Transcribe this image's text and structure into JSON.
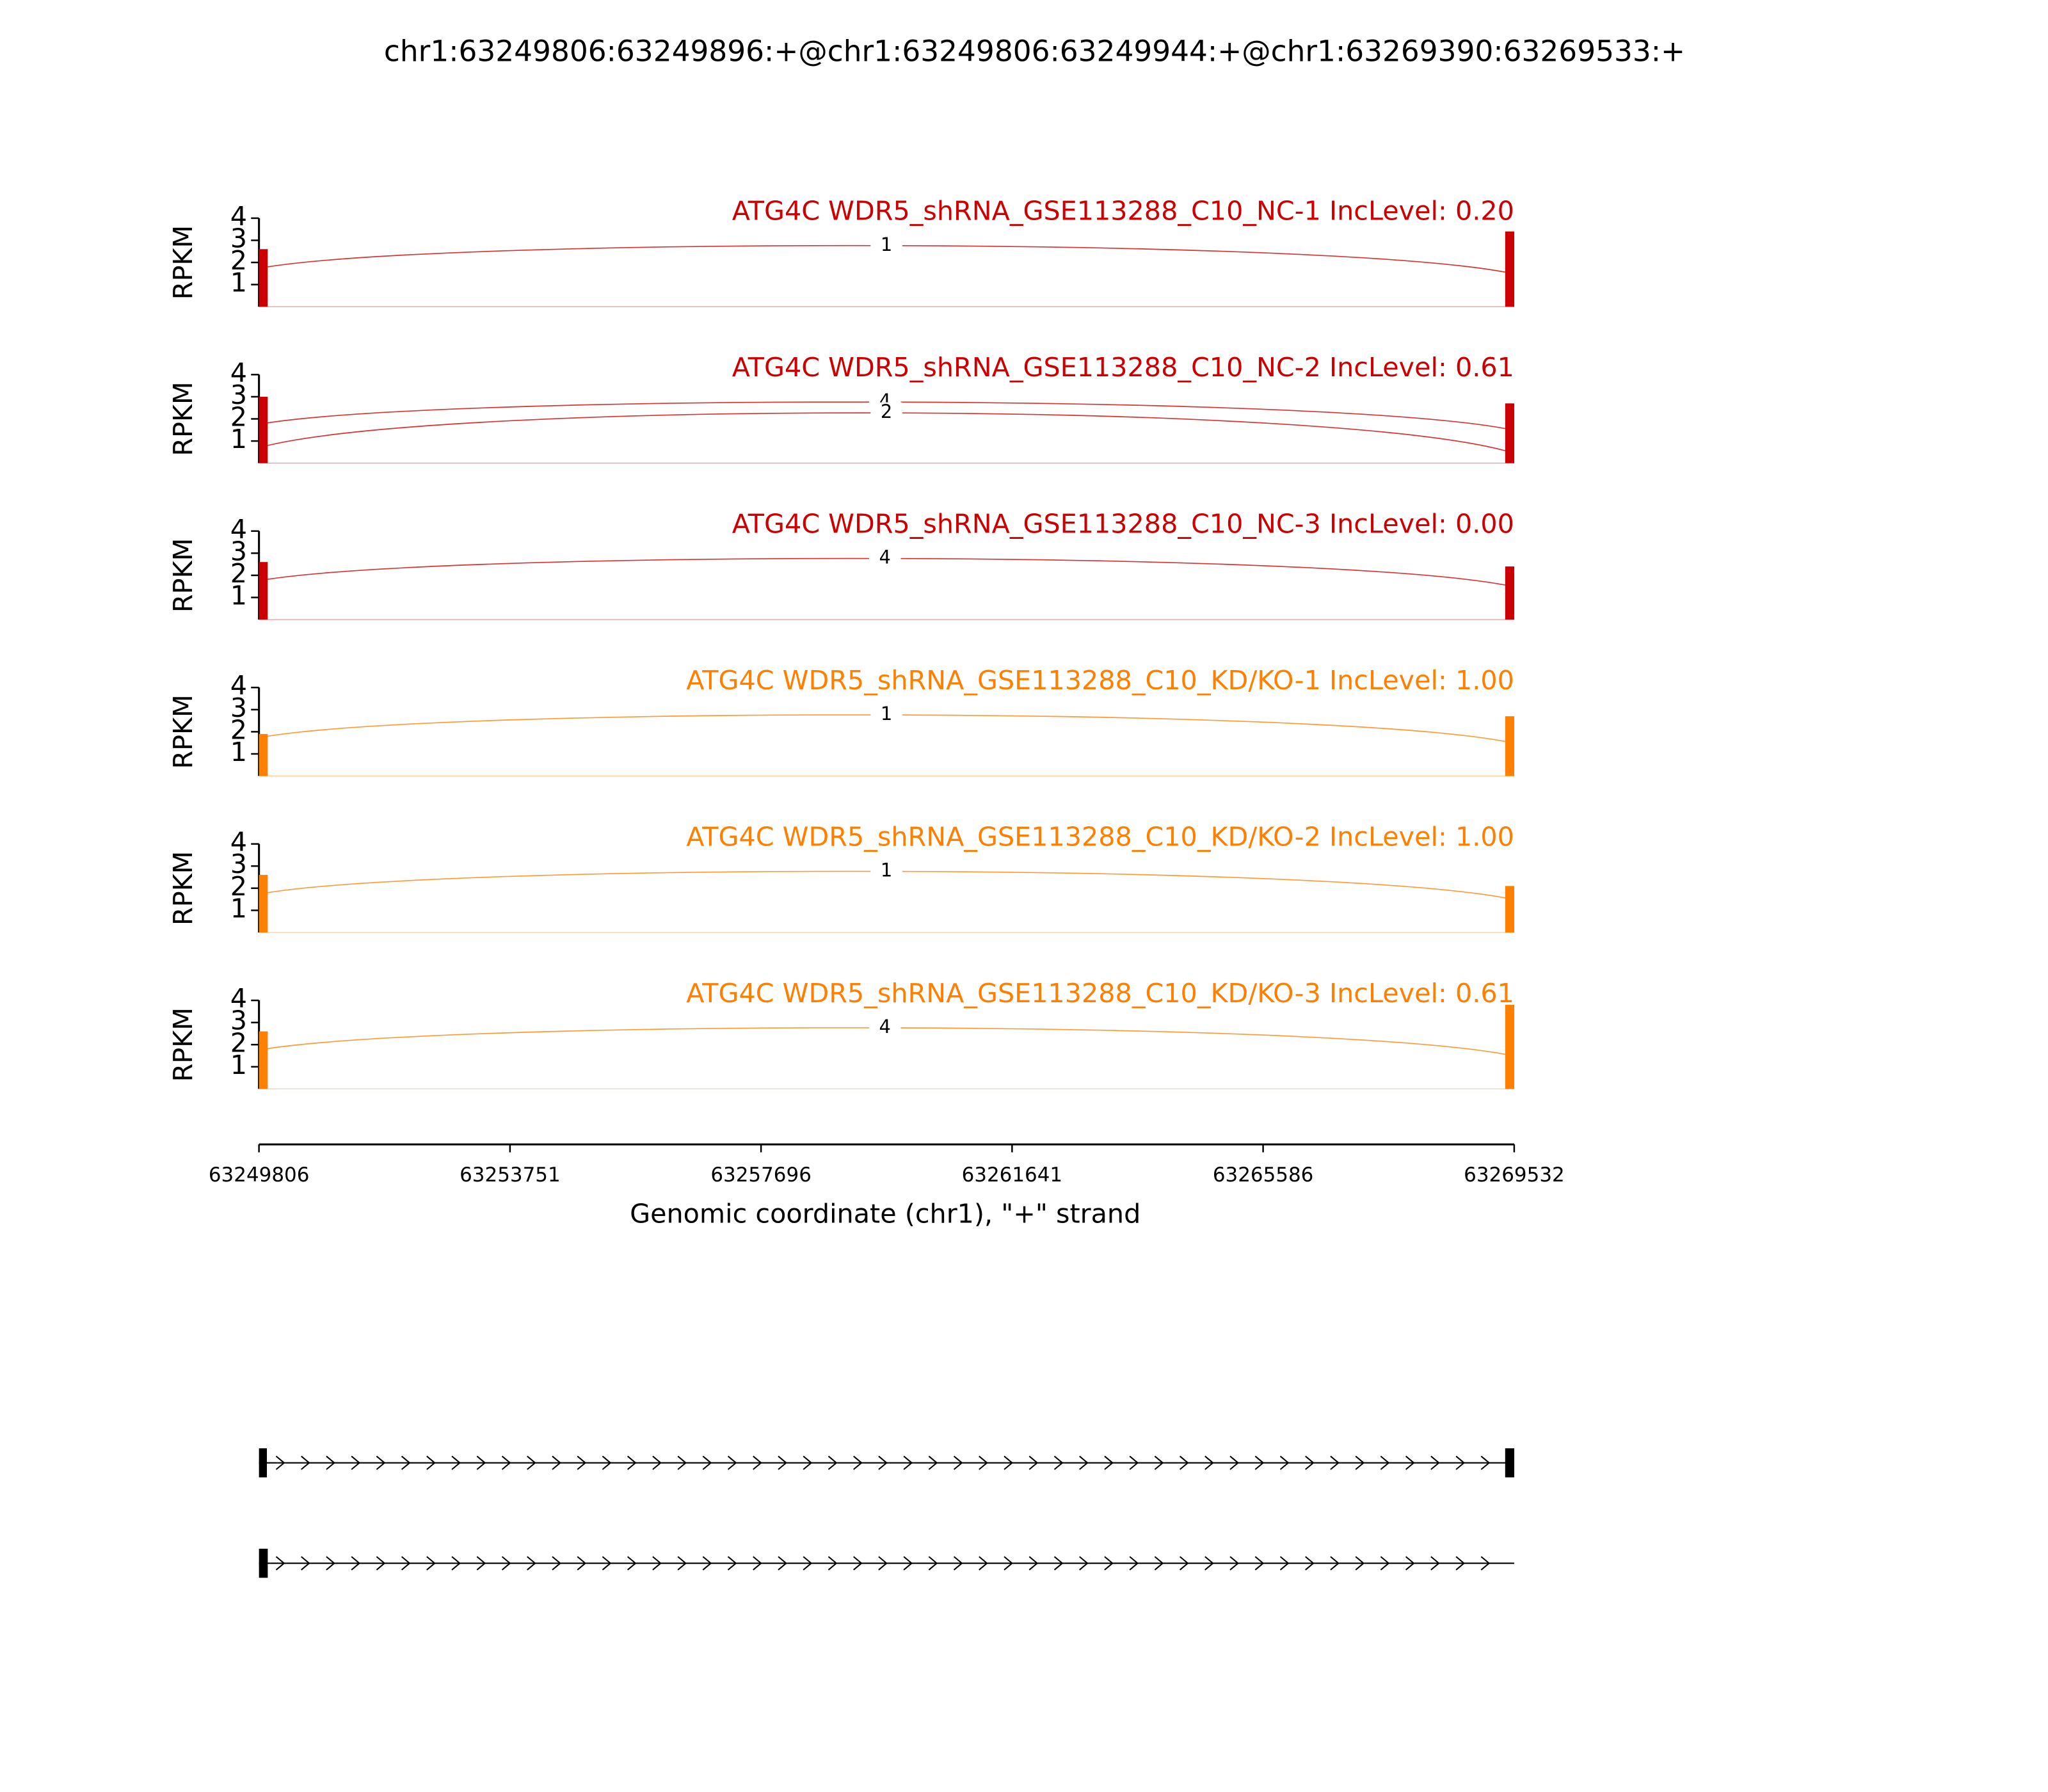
{
  "chart_data": {
    "type": "sashimi",
    "title": "chr1:63249806:63249896:+@chr1:63249806:63249944:+@chr1:63269390:63269533:+",
    "y_label": "RPKM",
    "x_label": "Genomic coordinate (chr1), \"+\" strand",
    "xlim": [
      63249806,
      63269532
    ],
    "xticks": [
      63249806,
      63253751,
      63257696,
      63261641,
      63265586,
      63269532
    ],
    "ylim": [
      0,
      4
    ],
    "yticks": [
      1,
      2,
      3,
      4
    ],
    "tracks": [
      {
        "name": "ATG4C WDR5_shRNA_GSE113288_C10_NC-1 IncLevel: 0.20",
        "color": "#cc0000",
        "coverage": [
          {
            "start": 63249806,
            "end": 63249944,
            "value": 2.6
          },
          {
            "start": 63269390,
            "end": 63269533,
            "value": 3.4
          }
        ],
        "junctions": [
          {
            "start": 63249944,
            "end": 63269390,
            "count": 1
          }
        ]
      },
      {
        "name": "ATG4C WDR5_shRNA_GSE113288_C10_NC-2 IncLevel: 0.61",
        "color": "#cc0000",
        "coverage": [
          {
            "start": 63249806,
            "end": 63249944,
            "value": 3.0
          },
          {
            "start": 63269390,
            "end": 63269533,
            "value": 2.7
          }
        ],
        "junctions": [
          {
            "start": 63249896,
            "end": 63269390,
            "count": 4
          },
          {
            "start": 63249944,
            "end": 63269390,
            "count": 2
          }
        ]
      },
      {
        "name": "ATG4C WDR5_shRNA_GSE113288_C10_NC-3 IncLevel: 0.00",
        "color": "#cc0000",
        "coverage": [
          {
            "start": 63249806,
            "end": 63249944,
            "value": 2.6
          },
          {
            "start": 63269390,
            "end": 63269533,
            "value": 2.4
          }
        ],
        "junctions": [
          {
            "start": 63249896,
            "end": 63269390,
            "count": 4
          }
        ]
      },
      {
        "name": "ATG4C WDR5_shRNA_GSE113288_C10_KD/KO-1 IncLevel: 1.00",
        "color": "#ff8000",
        "coverage": [
          {
            "start": 63249806,
            "end": 63249944,
            "value": 1.9
          },
          {
            "start": 63269390,
            "end": 63269533,
            "value": 2.7
          }
        ],
        "junctions": [
          {
            "start": 63249944,
            "end": 63269390,
            "count": 1
          }
        ]
      },
      {
        "name": "ATG4C WDR5_shRNA_GSE113288_C10_KD/KO-2 IncLevel: 1.00",
        "color": "#ff8000",
        "coverage": [
          {
            "start": 63249806,
            "end": 63249944,
            "value": 2.6
          },
          {
            "start": 63269390,
            "end": 63269533,
            "value": 2.1
          }
        ],
        "junctions": [
          {
            "start": 63249944,
            "end": 63269390,
            "count": 1
          }
        ]
      },
      {
        "name": "ATG4C WDR5_shRNA_GSE113288_C10_KD/KO-3 IncLevel: 0.61",
        "color": "#ff8000",
        "coverage": [
          {
            "start": 63249806,
            "end": 63249944,
            "value": 2.6
          },
          {
            "start": 63269390,
            "end": 63269533,
            "value": 3.8
          }
        ],
        "junctions": [
          {
            "start": 63249896,
            "end": 63269390,
            "count": 4
          }
        ]
      }
    ],
    "transcripts": [
      {
        "exons": [
          {
            "start": 63249806,
            "end": 63249896
          },
          {
            "start": 63269390,
            "end": 63269533
          }
        ]
      },
      {
        "exons": [
          {
            "start": 63249806,
            "end": 63249944
          }
        ]
      }
    ]
  }
}
